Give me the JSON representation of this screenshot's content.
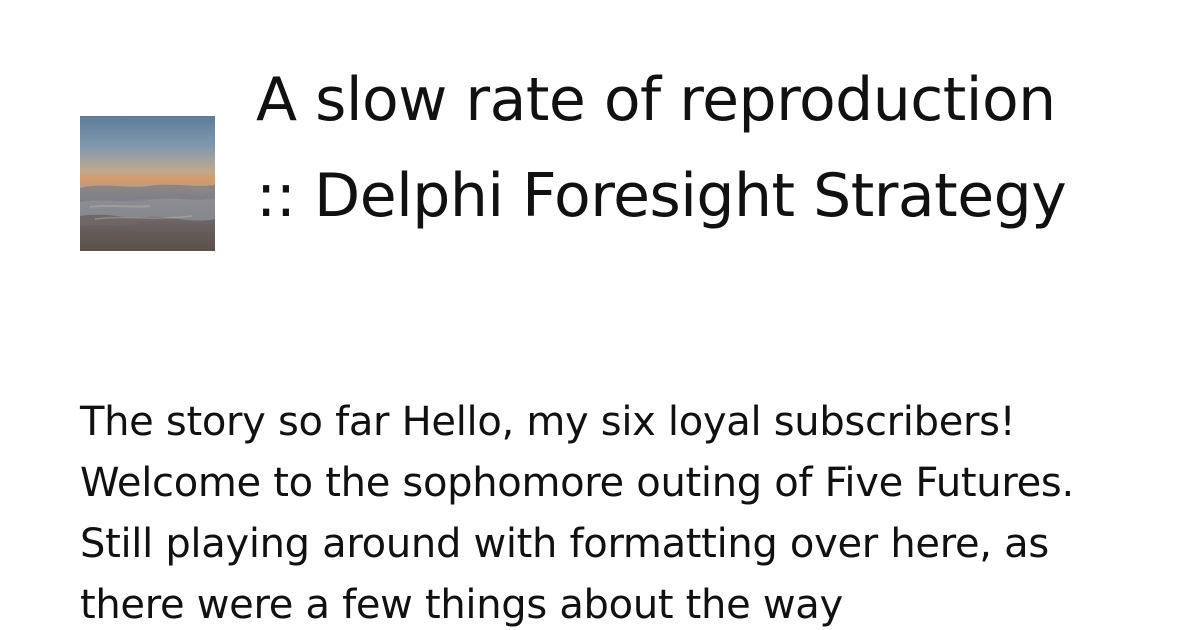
{
  "post": {
    "title": "A slow rate of reproduction :: Delphi Foresight Strategy",
    "excerpt": "The story so far Hello, my six loyal subscribers! Welcome to the sophomore outing of Five Futures. Still playing around with formatting over here, as there were a few things about the way"
  },
  "thumbnail": {
    "icon": "landscape-thumbnail-icon"
  }
}
